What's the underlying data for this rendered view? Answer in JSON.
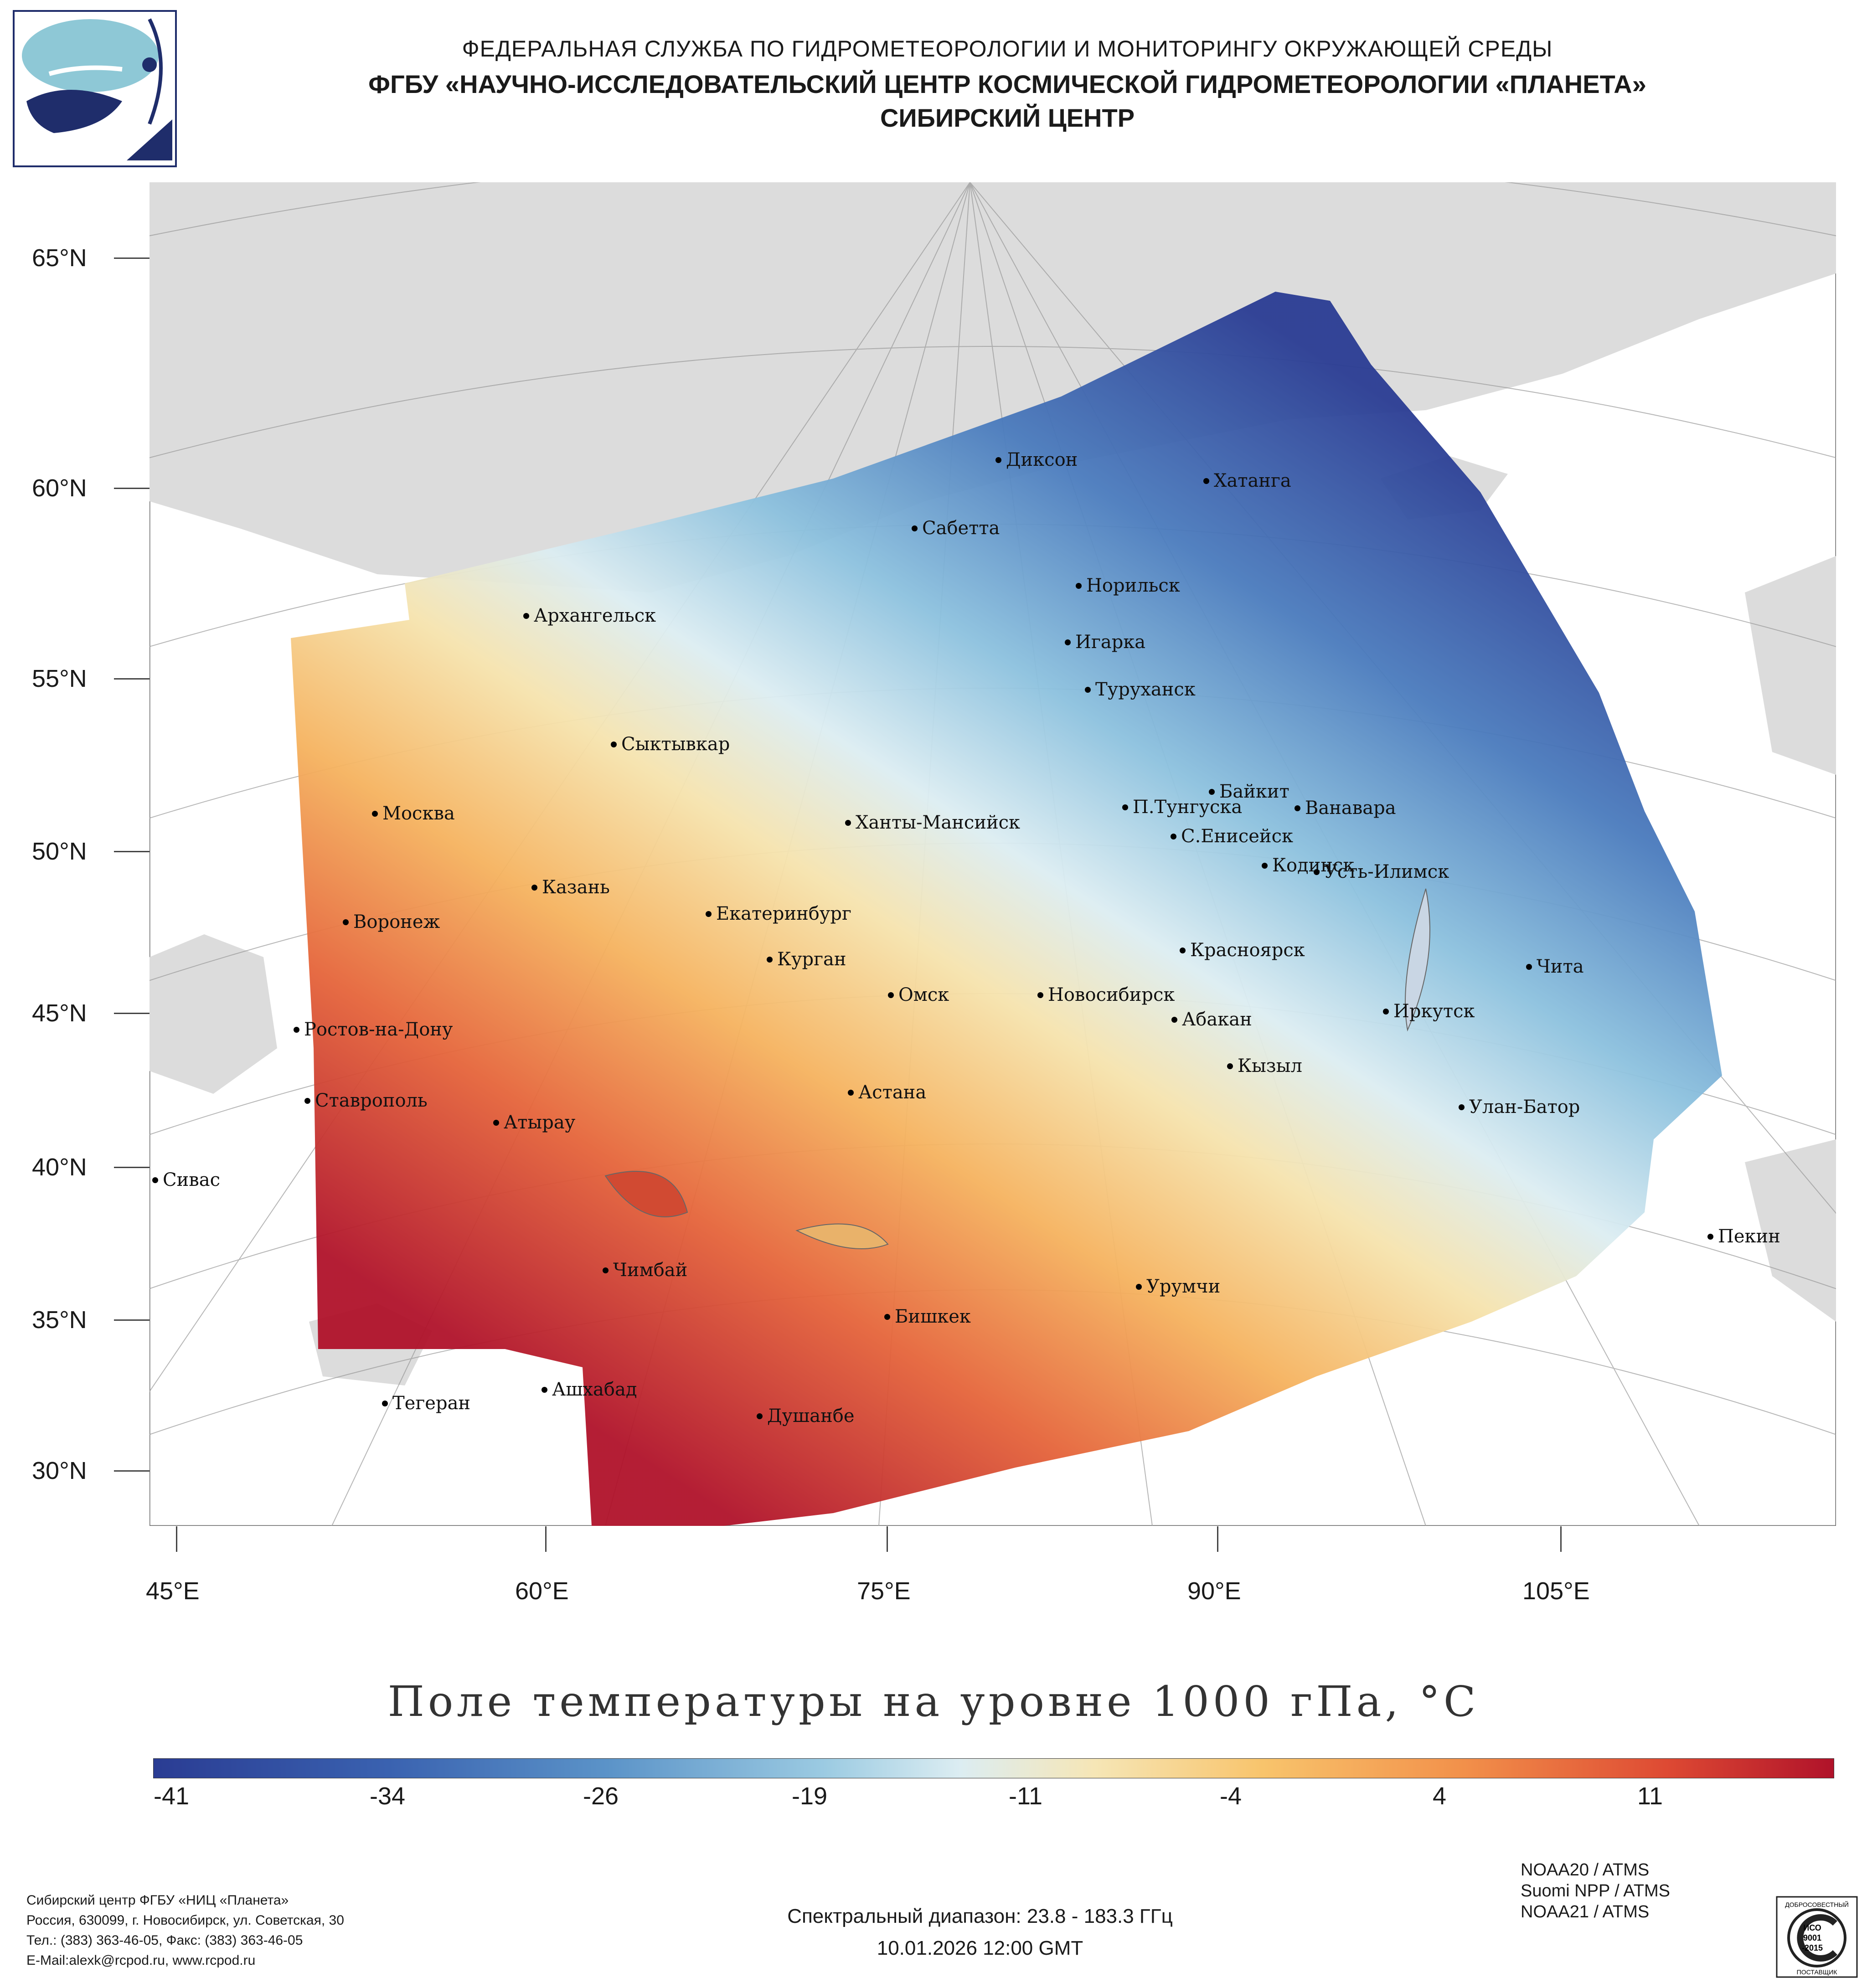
{
  "header": {
    "line1": "ФЕДЕРАЛЬНАЯ СЛУЖБА ПО ГИДРОМЕТЕОРОЛОГИИ И МОНИТОРИНГУ ОКРУЖАЮЩЕЙ СРЕДЫ",
    "line2": "ФГБУ «НАУЧНО-ИССЛЕДОВАТЕЛЬСКИЙ ЦЕНТР КОСМИЧЕСКОЙ ГИДРОМЕТЕОРОЛОГИИ «ПЛАНЕТА»",
    "line3": "СИБИРСКИЙ ЦЕНТР"
  },
  "map": {
    "lat_labels": [
      "65°N",
      "60°N",
      "55°N",
      "50°N",
      "45°N",
      "40°N",
      "35°N",
      "30°N"
    ],
    "lon_labels": [
      "45°E",
      "60°E",
      "75°E",
      "90°E",
      "105°E"
    ],
    "cities": [
      {
        "name": "Диксон"
      },
      {
        "name": "Хатанга"
      },
      {
        "name": "Сабетта"
      },
      {
        "name": "Норильск"
      },
      {
        "name": "Архангельск"
      },
      {
        "name": "Игарка"
      },
      {
        "name": "Туруханск"
      },
      {
        "name": "Сыктывкар"
      },
      {
        "name": "Байкит"
      },
      {
        "name": "П.Тунгуска"
      },
      {
        "name": "Ванавара"
      },
      {
        "name": "Москва"
      },
      {
        "name": "Ханты-Мансийск"
      },
      {
        "name": "С.Енисейск"
      },
      {
        "name": "Кодинск"
      },
      {
        "name": "Усть-Илимск"
      },
      {
        "name": "Казань"
      },
      {
        "name": "Екатеринбург"
      },
      {
        "name": "Воронеж"
      },
      {
        "name": "Красноярск"
      },
      {
        "name": "Курган"
      },
      {
        "name": "Чита"
      },
      {
        "name": "Омск"
      },
      {
        "name": "Новосибирск"
      },
      {
        "name": "Иркутск"
      },
      {
        "name": "Абакан"
      },
      {
        "name": "Ростов-на-Дону"
      },
      {
        "name": "Кызыл"
      },
      {
        "name": "Ставрополь"
      },
      {
        "name": "Астана"
      },
      {
        "name": "Улан-Батор"
      },
      {
        "name": "Атырау"
      },
      {
        "name": "Сивас"
      },
      {
        "name": "Пекин"
      },
      {
        "name": "Чимбай"
      },
      {
        "name": "Урумчи"
      },
      {
        "name": "Бишкек"
      },
      {
        "name": "Ашхабад"
      },
      {
        "name": "Тегеран"
      },
      {
        "name": "Душанбе"
      }
    ]
  },
  "title": "Поле температуры на уровне 1000 гПа, °C",
  "colorbar": {
    "labels": [
      "-41",
      "-34",
      "-26",
      "-19",
      "-11",
      "-4",
      "4",
      "11"
    ],
    "colors": [
      "#2a3c93",
      "#3a62b0",
      "#5b93c8",
      "#9ccbe2",
      "#dcedf2",
      "#f6e6b6",
      "#f8c46c",
      "#f2904a",
      "#de4a33",
      "#b0122a"
    ]
  },
  "footer": {
    "org_lines": [
      "Сибирский центр ФГБУ «НИЦ «Планета»",
      "Россия, 630099, г. Новосибирск, ул. Советская, 30",
      "Тел.: (383) 363-46-05, Факс: (383) 363-46-05",
      "E-Mail:alexk@rcpod.ru, www.rcpod.ru"
    ],
    "spectral": "Спектральный диапазон: 23.8 - 183.3 ГГц",
    "datetime": "10.01.2026 12:00 GMT",
    "instruments": [
      "NOAA20 / ATMS",
      "Suomi NPP / ATMS",
      "NOAA21 / ATMS"
    ],
    "iso": {
      "top": "ДОБРОСОВЕСТНЫЙ",
      "mid1": "ИСО",
      "mid2": "9001",
      "mid3": "-2015",
      "bottom": "ПОСТАВЩИК"
    }
  }
}
